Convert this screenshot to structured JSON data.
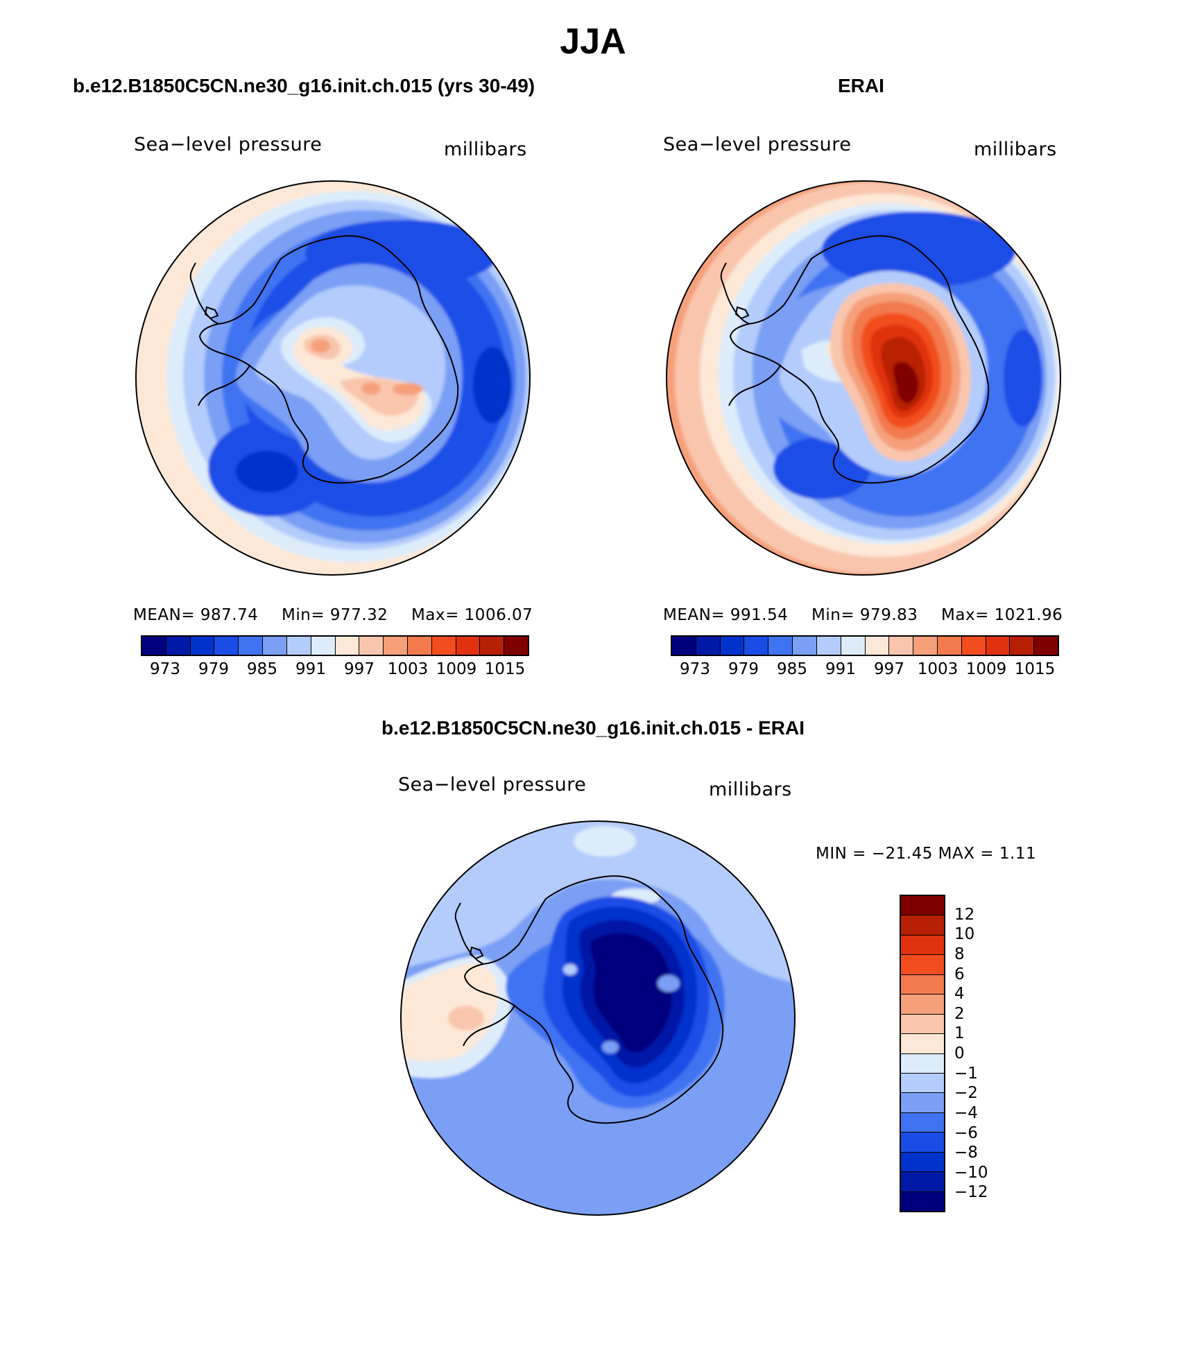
{
  "figure": {
    "title": "JJA"
  },
  "panels": {
    "model": {
      "title": "b.e12.B1850C5CN.ne30_g16.init.ch.015 (yrs 30-49)",
      "left_label": "Sea−level pressure",
      "right_label": "millibars",
      "mean_label": "MEAN=",
      "mean": "987.74",
      "min_label": "Min=",
      "min": "977.32",
      "max_label": "Max=",
      "max": "1006.07"
    },
    "obs": {
      "title": "ERAI",
      "left_label": "Sea−level pressure",
      "right_label": "millibars",
      "mean_label": "MEAN=",
      "mean": "991.54",
      "min_label": "Min=",
      "min": "979.83",
      "max_label": "Max=",
      "max": "1021.96"
    },
    "diff": {
      "title": "b.e12.B1850C5CN.ne30_g16.init.ch.015 - ERAI",
      "left_label": "Sea−level pressure",
      "right_label": "millibars",
      "minmax_text": "MIN = −21.45 MAX =    1.11"
    }
  },
  "colorbars": {
    "abs": {
      "colors": [
        "#00007f",
        "#0019a6",
        "#0033cc",
        "#1a4de6",
        "#4073f2",
        "#7a9ff5",
        "#b3ccfb",
        "#ddecfb",
        "#fde8d7",
        "#f9c6ad",
        "#f5a07a",
        "#f27a4d",
        "#f24d1f",
        "#e0320f",
        "#b82005",
        "#800000"
      ],
      "tick_labels": [
        "973",
        "979",
        "985",
        "991",
        "997",
        "1003",
        "1009",
        "1015"
      ]
    },
    "diff": {
      "colors_top_to_bottom": [
        "#800000",
        "#b82005",
        "#e0320f",
        "#f24d1f",
        "#f27a4d",
        "#f5a07a",
        "#f9c6ad",
        "#fde8d7",
        "#ddecfb",
        "#b3ccfb",
        "#7a9ff5",
        "#4073f2",
        "#1a4de6",
        "#0033cc",
        "#0019a6",
        "#00007f"
      ],
      "tick_labels_top_to_bottom": [
        "12",
        "10",
        "8",
        "6",
        "4",
        "2",
        "1",
        "0",
        "−1",
        "−2",
        "−4",
        "−6",
        "−8",
        "−10",
        "−12"
      ]
    }
  }
}
